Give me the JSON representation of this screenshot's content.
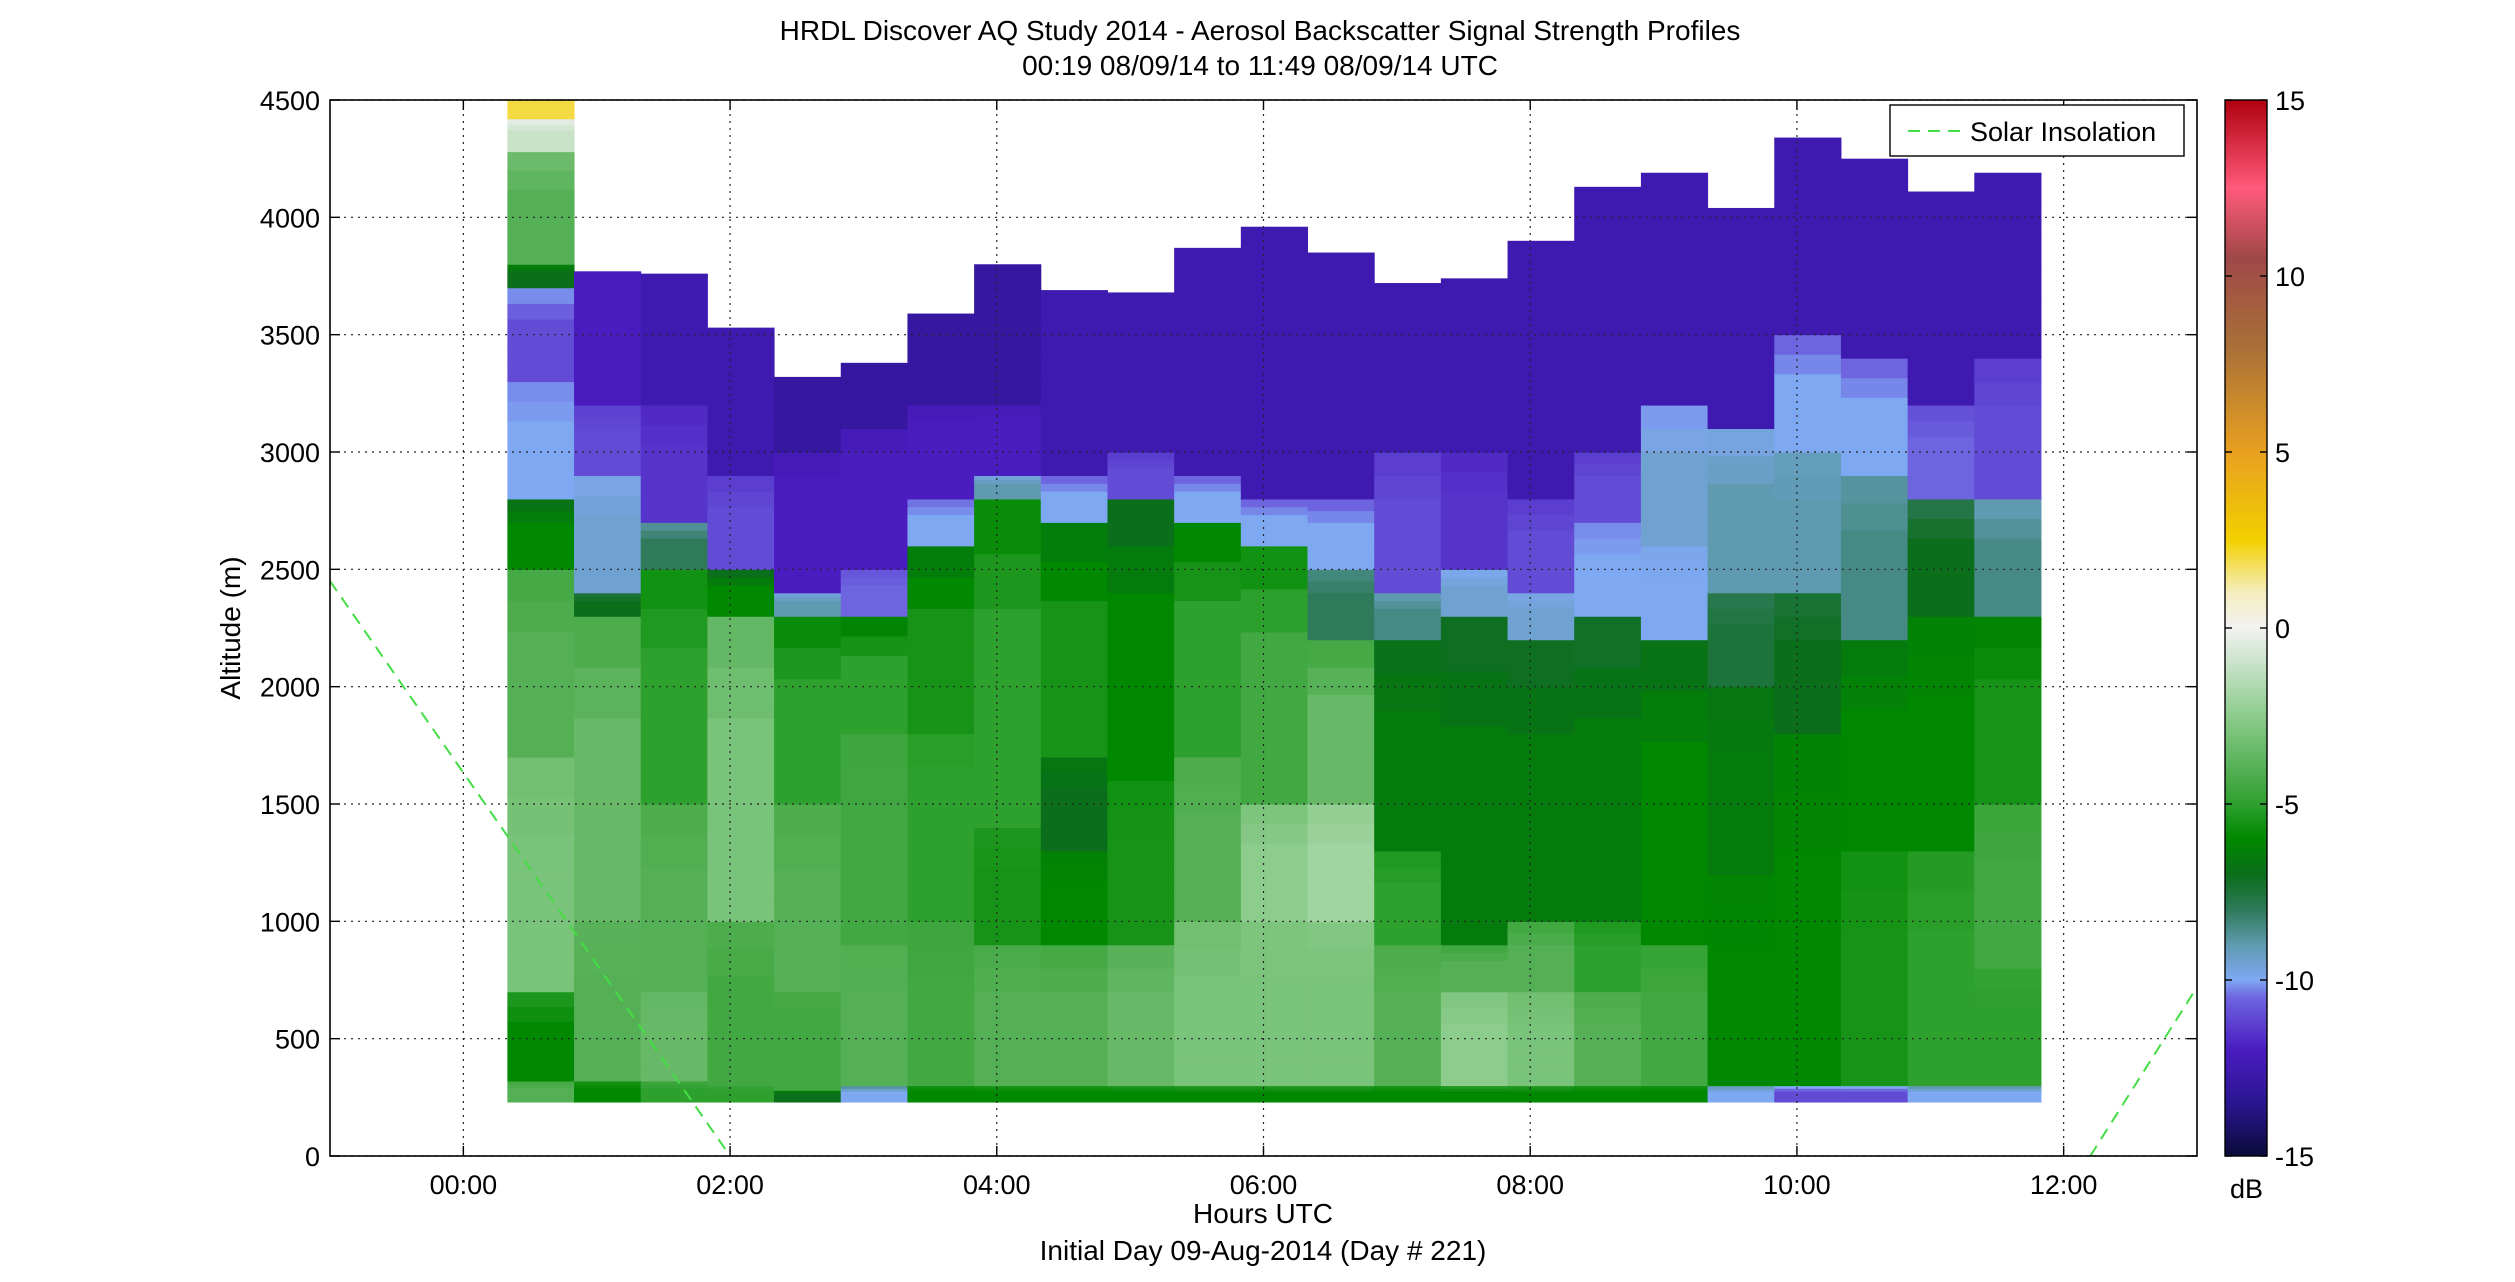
{
  "chart_data": {
    "type": "heatmap",
    "title": "HRDL Discover AQ Study 2014 - Aerosol Backscatter Signal Strength Profiles",
    "subtitle": "00:19 08/09/14 to 11:49 08/09/14  UTC",
    "xlabel": "Hours UTC",
    "xlabel2": "Initial Day 09-Aug-2014 (Day # 221)",
    "ylabel": "Altitude (m)",
    "xlim": [
      -1.0,
      13.0
    ],
    "ylim": [
      0,
      4500
    ],
    "xticks": [
      0,
      2,
      4,
      6,
      8,
      10,
      12
    ],
    "xtick_labels": [
      "00:00",
      "02:00",
      "04:00",
      "06:00",
      "08:00",
      "10:00",
      "12:00"
    ],
    "yticks": [
      0,
      500,
      1000,
      1500,
      2000,
      2500,
      3000,
      3500,
      4000,
      4500
    ],
    "ytick_labels": [
      "0",
      "500",
      "1000",
      "1500",
      "2000",
      "2500",
      "3000",
      "3500",
      "4000",
      "4500"
    ],
    "grid": true,
    "colorbar": {
      "label": "dB",
      "range": [
        -15,
        15
      ],
      "ticks": [
        -15,
        -10,
        -5,
        0,
        5,
        10,
        15
      ],
      "tick_labels": [
        "-15",
        "-10",
        "-5",
        "0",
        "5",
        "10",
        "15"
      ],
      "stops": [
        {
          "value": -15,
          "color": "#0b0b3a"
        },
        {
          "value": -13.5,
          "color": "#2a1590"
        },
        {
          "value": -12,
          "color": "#4a1cc0"
        },
        {
          "value": -10.5,
          "color": "#6e64e0"
        },
        {
          "value": -10,
          "color": "#7fa8f2"
        },
        {
          "value": -9,
          "color": "#5f9ab0"
        },
        {
          "value": -8,
          "color": "#2f7a5a"
        },
        {
          "value": -7,
          "color": "#0a6e1a"
        },
        {
          "value": -6,
          "color": "#008800"
        },
        {
          "value": -5,
          "color": "#2ea02e"
        },
        {
          "value": -4,
          "color": "#55b055"
        },
        {
          "value": -2.5,
          "color": "#8ccc8c"
        },
        {
          "value": -1,
          "color": "#c9e3c9"
        },
        {
          "value": 0,
          "color": "#f2f2f2"
        },
        {
          "value": 1,
          "color": "#f5eec0"
        },
        {
          "value": 2.5,
          "color": "#f2d000"
        },
        {
          "value": 5,
          "color": "#e8a020"
        },
        {
          "value": 8,
          "color": "#a87038"
        },
        {
          "value": 10.5,
          "color": "#a04848"
        },
        {
          "value": 12.5,
          "color": "#ff5a7a"
        },
        {
          "value": 15,
          "color": "#b00010"
        }
      ]
    },
    "time_bins": [
      0.33,
      0.83,
      1.33,
      1.83,
      2.33,
      2.83,
      3.33,
      3.83,
      4.33,
      4.83,
      5.33,
      5.83,
      6.33,
      6.83,
      7.33,
      7.83,
      8.33,
      8.83,
      9.33,
      9.83,
      10.33,
      10.83,
      11.33,
      11.83
    ],
    "profile_bottom_m": 230,
    "profile_tops_m": [
      4500,
      3770,
      3760,
      3530,
      3320,
      3380,
      3590,
      3800,
      3690,
      3680,
      3870,
      3960,
      3850,
      3720,
      3740,
      3900,
      4130,
      4190,
      4040,
      4340,
      4250,
      4110,
      4190
    ],
    "profiles": [
      {
        "time": "00:20",
        "layers": [
          [
            230,
            320,
            -4
          ],
          [
            320,
            700,
            -6
          ],
          [
            700,
            1700,
            -3
          ],
          [
            1700,
            2500,
            -4
          ],
          [
            2500,
            2800,
            -6
          ],
          [
            2800,
            3300,
            -10
          ],
          [
            3300,
            3700,
            -11
          ],
          [
            3700,
            3800,
            -7
          ],
          [
            3800,
            4280,
            -4
          ],
          [
            4280,
            4420,
            -1
          ],
          [
            4420,
            4500,
            2
          ]
        ]
      },
      {
        "time": "00:50",
        "layers": [
          [
            230,
            320,
            -6
          ],
          [
            320,
            1000,
            -4
          ],
          [
            1000,
            2300,
            -3.5
          ],
          [
            2300,
            2400,
            -7
          ],
          [
            2400,
            2900,
            -9.5
          ],
          [
            2900,
            3200,
            -11
          ],
          [
            3200,
            3770,
            -12
          ]
        ]
      },
      {
        "time": "01:20",
        "layers": [
          [
            230,
            320,
            -5
          ],
          [
            320,
            700,
            -3.5
          ],
          [
            700,
            1500,
            -4
          ],
          [
            1500,
            2500,
            -5
          ],
          [
            2500,
            2700,
            -8
          ],
          [
            2700,
            3200,
            -11.5
          ],
          [
            3200,
            3760,
            -12.5
          ]
        ]
      },
      {
        "time": "01:50",
        "layers": [
          [
            230,
            300,
            -5
          ],
          [
            300,
            1000,
            -4.5
          ],
          [
            1000,
            2300,
            -3
          ],
          [
            2300,
            2500,
            -6
          ],
          [
            2500,
            2900,
            -11
          ],
          [
            2900,
            3530,
            -12.5
          ]
        ]
      },
      {
        "time": "02:20",
        "layers": [
          [
            230,
            280,
            -7
          ],
          [
            280,
            700,
            -4.5
          ],
          [
            700,
            1500,
            -4
          ],
          [
            1500,
            2300,
            -5
          ],
          [
            2300,
            2400,
            -9
          ],
          [
            2400,
            3000,
            -12
          ],
          [
            3000,
            3320,
            -13
          ]
        ]
      },
      {
        "time": "02:50",
        "layers": [
          [
            230,
            300,
            -10
          ],
          [
            300,
            900,
            -4
          ],
          [
            900,
            1800,
            -4.5
          ],
          [
            1800,
            2300,
            -5
          ],
          [
            2300,
            2500,
            -10.5
          ],
          [
            2500,
            3100,
            -12
          ],
          [
            3100,
            3380,
            -13
          ]
        ]
      },
      {
        "time": "03:20",
        "layers": [
          [
            230,
            300,
            -6
          ],
          [
            300,
            1000,
            -4.5
          ],
          [
            1000,
            1800,
            -5
          ],
          [
            1800,
            2600,
            -5.5
          ],
          [
            2600,
            2800,
            -10
          ],
          [
            2800,
            3200,
            -12
          ],
          [
            3200,
            3590,
            -13
          ]
        ]
      },
      {
        "time": "03:50",
        "layers": [
          [
            230,
            300,
            -6
          ],
          [
            300,
            900,
            -4
          ],
          [
            900,
            1400,
            -5.5
          ],
          [
            1400,
            2800,
            -5
          ],
          [
            2800,
            2900,
            -9
          ],
          [
            2900,
            3200,
            -12
          ],
          [
            3200,
            3800,
            -13
          ]
        ]
      },
      {
        "time": "04:20",
        "layers": [
          [
            230,
            300,
            -6
          ],
          [
            300,
            900,
            -4
          ],
          [
            900,
            1300,
            -6
          ],
          [
            1300,
            1700,
            -7
          ],
          [
            1700,
            2700,
            -5.5
          ],
          [
            2700,
            2900,
            -10
          ],
          [
            2900,
            3690,
            -12.5
          ]
        ]
      },
      {
        "time": "04:50",
        "layers": [
          [
            230,
            300,
            -6
          ],
          [
            300,
            900,
            -3.5
          ],
          [
            900,
            1600,
            -5.5
          ],
          [
            1600,
            2800,
            -6
          ],
          [
            2800,
            3000,
            -11
          ],
          [
            3000,
            3680,
            -12.5
          ]
        ]
      },
      {
        "time": "05:20",
        "layers": [
          [
            230,
            300,
            -6
          ],
          [
            300,
            1000,
            -3
          ],
          [
            1000,
            1700,
            -4
          ],
          [
            1700,
            2700,
            -5
          ],
          [
            2700,
            2900,
            -10
          ],
          [
            2900,
            3870,
            -12.5
          ]
        ]
      },
      {
        "time": "05:50",
        "layers": [
          [
            230,
            300,
            -6
          ],
          [
            300,
            1000,
            -3
          ],
          [
            1000,
            1500,
            -2.5
          ],
          [
            1500,
            2600,
            -4.5
          ],
          [
            2600,
            2800,
            -10
          ],
          [
            2800,
            3960,
            -12.5
          ]
        ]
      },
      {
        "time": "06:20",
        "layers": [
          [
            230,
            300,
            -6
          ],
          [
            300,
            1000,
            -3
          ],
          [
            1000,
            1500,
            -2
          ],
          [
            1500,
            2200,
            -3.5
          ],
          [
            2200,
            2500,
            -8
          ],
          [
            2500,
            2800,
            -10
          ],
          [
            2800,
            3850,
            -12.5
          ]
        ]
      },
      {
        "time": "06:50",
        "layers": [
          [
            230,
            300,
            -6
          ],
          [
            300,
            900,
            -4
          ],
          [
            900,
            1300,
            -5
          ],
          [
            1300,
            2200,
            -6.5
          ],
          [
            2200,
            2400,
            -8.5
          ],
          [
            2400,
            3000,
            -11
          ],
          [
            3000,
            3720,
            -12.5
          ]
        ]
      },
      {
        "time": "07:20",
        "layers": [
          [
            230,
            300,
            -6
          ],
          [
            300,
            700,
            -2.5
          ],
          [
            700,
            900,
            -4
          ],
          [
            900,
            2300,
            -6.5
          ],
          [
            2300,
            2500,
            -9.5
          ],
          [
            2500,
            3000,
            -11.5
          ],
          [
            3000,
            3740,
            -12.5
          ]
        ]
      },
      {
        "time": "07:50",
        "layers": [
          [
            230,
            300,
            -6
          ],
          [
            300,
            700,
            -3
          ],
          [
            700,
            1000,
            -4
          ],
          [
            1000,
            2200,
            -6.5
          ],
          [
            2200,
            2400,
            -9.5
          ],
          [
            2400,
            2800,
            -11
          ],
          [
            2800,
            3900,
            -12.5
          ]
        ]
      },
      {
        "time": "08:20",
        "layers": [
          [
            230,
            300,
            -6
          ],
          [
            300,
            700,
            -4
          ],
          [
            700,
            1000,
            -5
          ],
          [
            1000,
            2300,
            -6.5
          ],
          [
            2300,
            2700,
            -10
          ],
          [
            2700,
            3000,
            -11
          ],
          [
            3000,
            4130,
            -12.5
          ]
        ]
      },
      {
        "time": "08:50",
        "layers": [
          [
            230,
            300,
            -6
          ],
          [
            300,
            900,
            -4.5
          ],
          [
            900,
            2200,
            -6
          ],
          [
            2200,
            2600,
            -10
          ],
          [
            2600,
            3200,
            -9.5
          ],
          [
            3200,
            4190,
            -12.5
          ]
        ]
      },
      {
        "time": "09:20",
        "layers": [
          [
            230,
            300,
            -10
          ],
          [
            300,
            1200,
            -6
          ],
          [
            1200,
            2000,
            -6.5
          ],
          [
            2000,
            2400,
            -7.5
          ],
          [
            2400,
            3100,
            -9
          ],
          [
            3100,
            4040,
            -12.5
          ]
        ]
      },
      {
        "time": "09:50",
        "layers": [
          [
            230,
            300,
            -11
          ],
          [
            300,
            1800,
            -6
          ],
          [
            1800,
            2400,
            -7
          ],
          [
            2400,
            3000,
            -9
          ],
          [
            3000,
            3500,
            -10
          ],
          [
            3500,
            4340,
            -12.5
          ]
        ]
      },
      {
        "time": "10:20",
        "layers": [
          [
            230,
            300,
            -11
          ],
          [
            300,
            1300,
            -5.5
          ],
          [
            1300,
            2200,
            -6
          ],
          [
            2200,
            2900,
            -8.5
          ],
          [
            2900,
            3400,
            -10
          ],
          [
            3400,
            4250,
            -12.5
          ]
        ]
      },
      {
        "time": "10:50",
        "layers": [
          [
            230,
            300,
            -10
          ],
          [
            300,
            1300,
            -5
          ],
          [
            1300,
            2300,
            -6
          ],
          [
            2300,
            2800,
            -7
          ],
          [
            2800,
            3200,
            -10.5
          ],
          [
            3200,
            4110,
            -12.5
          ]
        ]
      },
      {
        "time": "11:20",
        "layers": [
          [
            230,
            300,
            -10
          ],
          [
            300,
            800,
            -5
          ],
          [
            800,
            1500,
            -4.5
          ],
          [
            1500,
            2300,
            -5.5
          ],
          [
            2300,
            2800,
            -8.5
          ],
          [
            2800,
            3400,
            -11
          ],
          [
            3400,
            4190,
            -12.5
          ]
        ]
      }
    ],
    "legend": [
      {
        "label": "Solar Insolation",
        "style": "dashed",
        "color": "#44dd44"
      }
    ],
    "legend_position": "top-right",
    "solar_insolation_segments": [
      {
        "x": [
          -1.0,
          2.0
        ],
        "y": [
          2450,
          0
        ]
      },
      {
        "x": [
          12.2,
          13.0
        ],
        "y": [
          0,
          720
        ]
      }
    ]
  }
}
